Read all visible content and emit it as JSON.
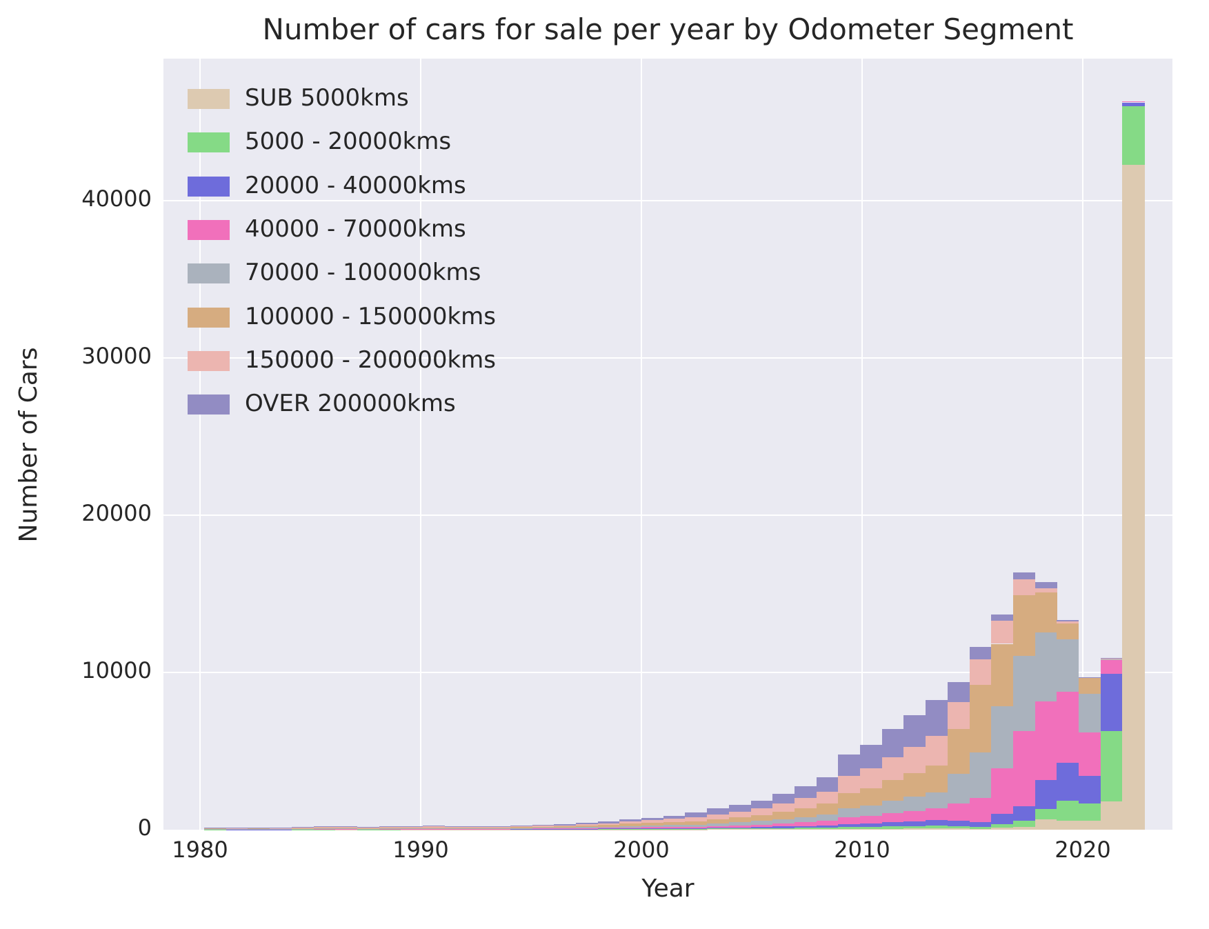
{
  "chart_data": {
    "type": "bar",
    "stacked": true,
    "title": "Number of cars for sale per year by Odometer Segment",
    "xlabel": "Year",
    "ylabel": "Number of Cars",
    "legend_position": "upper-left",
    "grid": true,
    "background_color": "#eaeaf2",
    "grid_color": "#ffffff",
    "text_color": "#262626",
    "ylim": [
      0,
      49000
    ],
    "yticks": [
      0,
      10000,
      20000,
      30000,
      40000
    ],
    "ytick_labels": [
      "0",
      "10000",
      "20000",
      "30000",
      "40000"
    ],
    "xticks": [
      1980,
      1990,
      2000,
      2010,
      2020
    ],
    "xtick_labels": [
      "1980",
      "1990",
      "2000",
      "2010",
      "2020"
    ],
    "x": [
      1980,
      1981,
      1982,
      1983,
      1984,
      1985,
      1986,
      1987,
      1988,
      1989,
      1990,
      1991,
      1992,
      1993,
      1994,
      1995,
      1996,
      1997,
      1998,
      1999,
      2000,
      2001,
      2002,
      2003,
      2004,
      2005,
      2006,
      2007,
      2008,
      2009,
      2010,
      2011,
      2012,
      2013,
      2014,
      2015,
      2016,
      2017,
      2018,
      2019,
      2020,
      2021,
      2022
    ],
    "series": [
      {
        "name": "SUB 5000kms",
        "color": "#ddcab1",
        "values": [
          5,
          4,
          5,
          4,
          6,
          7,
          8,
          6,
          7,
          8,
          9,
          8,
          8,
          8,
          9,
          9,
          10,
          12,
          14,
          16,
          19,
          21,
          20,
          25,
          28,
          32,
          36,
          40,
          45,
          55,
          60,
          65,
          70,
          80,
          70,
          65,
          130,
          170,
          650,
          560,
          550,
          1820,
          42300
        ]
      },
      {
        "name": "5000 - 20000kms",
        "color": "#85da86",
        "values": [
          10,
          8,
          9,
          8,
          11,
          13,
          15,
          11,
          13,
          14,
          16,
          14,
          15,
          15,
          17,
          16,
          18,
          22,
          26,
          32,
          38,
          42,
          40,
          50,
          55,
          62,
          72,
          82,
          92,
          115,
          125,
          140,
          150,
          170,
          130,
          100,
          220,
          390,
          650,
          1300,
          1100,
          4460,
          3700
        ]
      },
      {
        "name": "20000 - 40000kms",
        "color": "#6e6cdb",
        "values": [
          8,
          7,
          7,
          7,
          9,
          11,
          13,
          9,
          11,
          12,
          14,
          12,
          13,
          13,
          15,
          16,
          18,
          22,
          26,
          33,
          38,
          44,
          45,
          55,
          65,
          78,
          95,
          115,
          140,
          195,
          225,
          270,
          315,
          360,
          350,
          330,
          650,
          950,
          1860,
          2380,
          1750,
          3640,
          250
        ]
      },
      {
        "name": "40000 - 70000kms",
        "color": "#f170bb",
        "values": [
          15,
          13,
          14,
          13,
          17,
          21,
          24,
          17,
          21,
          23,
          26,
          23,
          24,
          24,
          28,
          31,
          35,
          43,
          52,
          65,
          76,
          88,
          90,
          110,
          130,
          155,
          190,
          235,
          285,
          410,
          470,
          560,
          640,
          730,
          1100,
          1510,
          2900,
          4760,
          5000,
          4550,
          2800,
          870,
          50
        ]
      },
      {
        "name": "70000 - 100000kms",
        "color": "#aab2bd",
        "values": [
          20,
          17,
          18,
          17,
          22,
          27,
          31,
          22,
          27,
          30,
          34,
          30,
          31,
          31,
          37,
          43,
          49,
          60,
          73,
          91,
          106,
          123,
          130,
          160,
          185,
          225,
          275,
          335,
          410,
          590,
          670,
          800,
          910,
          1030,
          1900,
          2890,
          3940,
          4800,
          4370,
          3330,
          2450,
          60,
          0
        ]
      },
      {
        "name": "100000 - 150000kms",
        "color": "#d6ac80",
        "values": [
          30,
          26,
          28,
          26,
          34,
          42,
          48,
          34,
          42,
          46,
          52,
          46,
          48,
          48,
          56,
          65,
          74,
          90,
          109,
          137,
          160,
          186,
          215,
          270,
          315,
          375,
          465,
          565,
          680,
          975,
          1100,
          1310,
          1500,
          1700,
          2850,
          4300,
          3980,
          3850,
          2550,
          1000,
          1000,
          30,
          0
        ]
      },
      {
        "name": "150000 - 200000kms",
        "color": "#ecb5b0",
        "values": [
          32,
          28,
          30,
          28,
          37,
          46,
          52,
          37,
          46,
          50,
          56,
          50,
          52,
          52,
          61,
          68,
          77,
          95,
          115,
          144,
          169,
          196,
          250,
          310,
          360,
          430,
          530,
          640,
          770,
          1100,
          1250,
          1480,
          1680,
          1890,
          1700,
          1650,
          1450,
          1000,
          260,
          130,
          30,
          10,
          0
        ]
      },
      {
        "name": "OVER 200000kms",
        "color": "#928cc3",
        "values": [
          30,
          27,
          29,
          27,
          34,
          43,
          49,
          34,
          43,
          47,
          53,
          47,
          49,
          49,
          57,
          62,
          69,
          86,
          105,
          132,
          154,
          180,
          290,
          360,
          422,
          503,
          627,
          758,
          908,
          1320,
          1500,
          1775,
          2035,
          2290,
          1300,
          780,
          430,
          430,
          390,
          100,
          20,
          10,
          0
        ]
      }
    ]
  }
}
